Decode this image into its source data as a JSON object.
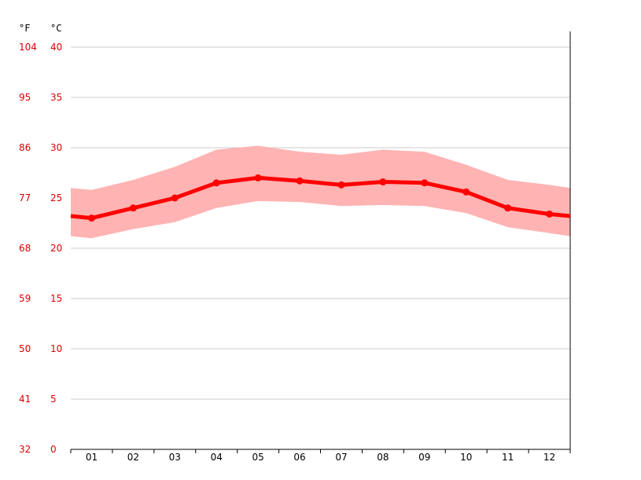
{
  "chart_data": {
    "type": "line",
    "title": "",
    "xlabel": "",
    "ylabel": "",
    "categories": [
      "01",
      "02",
      "03",
      "04",
      "05",
      "06",
      "07",
      "08",
      "09",
      "10",
      "11",
      "12"
    ],
    "series": [
      {
        "values": [
          23.0,
          24.0,
          25.0,
          26.5,
          27.0,
          26.7,
          26.3,
          26.6,
          26.5,
          25.6,
          24.0,
          23.4
        ]
      }
    ],
    "band": {
      "upper": [
        25.8,
        26.8,
        28.1,
        29.8,
        30.2,
        29.6,
        29.3,
        29.8,
        29.6,
        28.3,
        26.8,
        26.3
      ],
      "lower": [
        21.0,
        21.9,
        22.6,
        24.0,
        24.7,
        24.6,
        24.2,
        24.3,
        24.2,
        23.5,
        22.1,
        21.5
      ],
      "edge_start": {
        "upper": 26.0,
        "lower": 21.2
      },
      "edge_end": {
        "upper": 26.0,
        "lower": 21.2
      }
    },
    "edge_values": {
      "start": 23.2,
      "end": 23.2
    },
    "ylim": [
      0,
      40
    ],
    "y_ticks_celsius": [
      "0",
      "5",
      "10",
      "15",
      "20",
      "25",
      "30",
      "35",
      "40"
    ],
    "y_ticks_fahrenheit": [
      "32",
      "41",
      "50",
      "59",
      "68",
      "77",
      "86",
      "95",
      "104"
    ],
    "unit_labels": {
      "fahrenheit": "°F",
      "celsius": "°C"
    },
    "grid": true,
    "colors": {
      "line": "#ff0000",
      "band": "#ffb3b3",
      "grid": "#cccccc",
      "axis": "#000000",
      "y_labels": "#dd0000",
      "x_labels": "#000000"
    }
  }
}
